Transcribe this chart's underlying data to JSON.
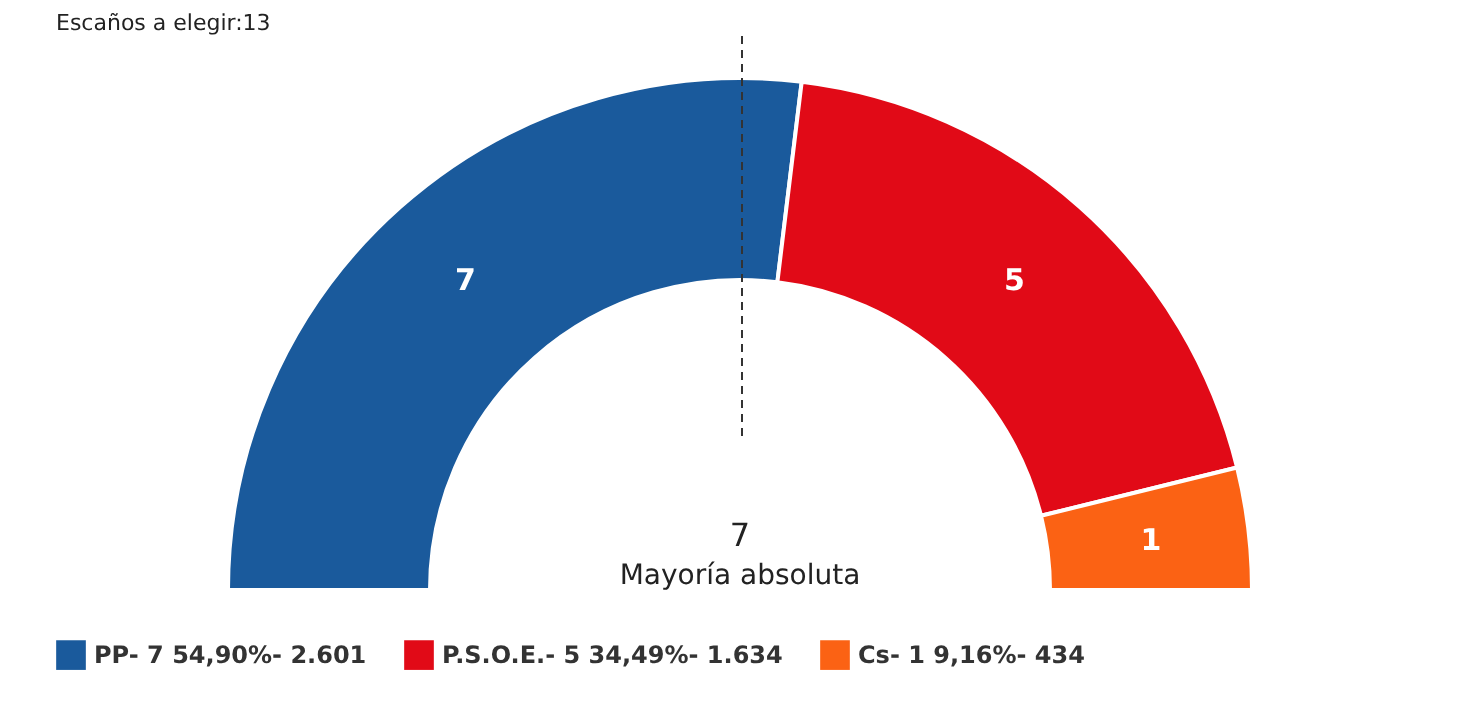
{
  "chart_data": {
    "type": "donut",
    "title": "Escaños a elegir:13",
    "categories": [
      "PP- 7 54,90%- 2.601",
      "P.S.O.E.- 5 34,49%- 1.634",
      "Cs- 1 9,16%- 434"
    ],
    "values": [
      7,
      5,
      1
    ],
    "colors": [
      "#1a5a9c",
      "#e10a17",
      "#fb6214"
    ],
    "data_labels": true,
    "annotations": [
      "7",
      "Mayoría absoluta"
    ],
    "legend": "bottom left"
  }
}
